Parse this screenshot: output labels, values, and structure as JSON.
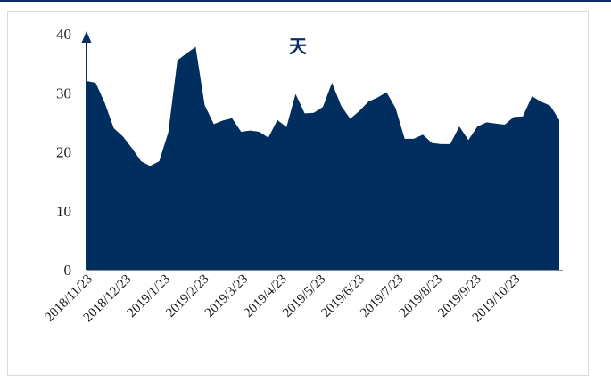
{
  "chart_data": {
    "type": "area",
    "title": "天",
    "xlabel": "",
    "ylabel": "",
    "ylim": [
      0,
      40
    ],
    "yticks": [
      0,
      10,
      20,
      30,
      40
    ],
    "grid": false,
    "color": "#002f5f",
    "x_tick_labels": [
      "2018/11/23",
      "2018/12/23",
      "2019/1/23",
      "2019/2/23",
      "2019/3/23",
      "2019/4/23",
      "2019/5/23",
      "2019/6/23",
      "2019/7/23",
      "2019/8/23",
      "2019/9/23",
      "2019/10/23"
    ],
    "values": [
      32.0,
      31.7,
      28.3,
      24.0,
      22.6,
      20.6,
      18.4,
      17.6,
      18.4,
      23.3,
      35.5,
      36.7,
      37.8,
      27.9,
      24.7,
      25.3,
      25.7,
      23.4,
      23.6,
      23.4,
      22.4,
      25.4,
      24.2,
      29.8,
      26.5,
      26.6,
      27.6,
      31.7,
      27.8,
      25.6,
      26.9,
      28.5,
      29.2,
      30.1,
      27.4,
      22.2,
      22.2,
      22.9,
      21.5,
      21.3,
      21.3,
      24.3,
      22.0,
      24.3,
      25.0,
      24.8,
      24.6,
      25.9,
      26.0,
      29.4,
      28.5,
      27.8,
      25.4
    ]
  }
}
